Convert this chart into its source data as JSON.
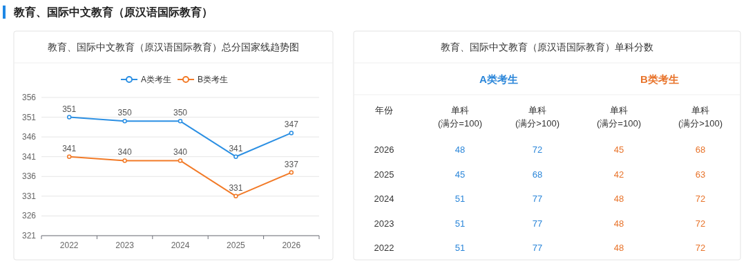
{
  "chart_data": [
    {
      "type": "line",
      "title": "教育、国际中文教育（原汉语国际教育）总分国家线趋势图",
      "annotations": [
        "教育、国际中文教育（原汉语国际教育）"
      ],
      "categories": [
        "2022",
        "2023",
        "2024",
        "2025",
        "2026"
      ],
      "series": [
        {
          "name": "A类考生",
          "color": "#2b8fe3",
          "values": [
            351,
            350,
            350,
            341,
            347
          ]
        },
        {
          "name": "B类考生",
          "color": "#f27a27",
          "values": [
            341,
            340,
            340,
            331,
            337
          ]
        }
      ],
      "ylim": [
        321,
        356
      ],
      "yticks": [
        321,
        326,
        331,
        336,
        341,
        346,
        351,
        356
      ],
      "grid": "y",
      "legend": "top",
      "marker": "circle",
      "data_labels": true
    },
    {
      "type": "heatmap",
      "title": "教育、国际中文教育（原汉语国际教育）单科分数",
      "ylabel": "年份",
      "annotations": [
        "A类考生",
        "B类考生"
      ],
      "categories": [
        "单科\n(满分=100)",
        "单科\n(满分>100)",
        "单科\n(满分=100)",
        "单科\n(满分>100)"
      ],
      "colors": [
        "#2b86d9",
        "#2b86d9",
        "#e8732a",
        "#e8732a"
      ],
      "y_categories": [
        "2026",
        "2025",
        "2024",
        "2023",
        "2022"
      ],
      "cells": [
        [
          48,
          72,
          45,
          68
        ],
        [
          45,
          68,
          42,
          63
        ],
        [
          51,
          77,
          48,
          72
        ],
        [
          51,
          77,
          48,
          72
        ],
        [
          51,
          77,
          48,
          72
        ]
      ],
      "data_labels": true
    }
  ]
}
